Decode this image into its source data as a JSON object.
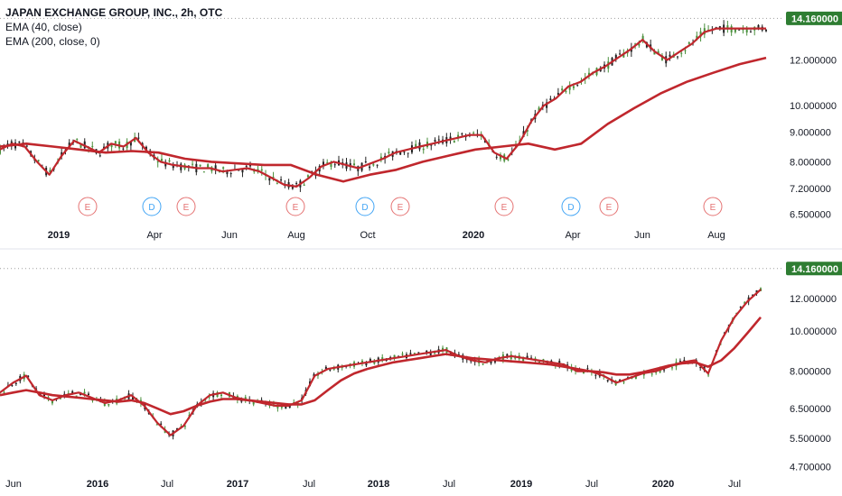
{
  "legend": {
    "title": "JAPAN EXCHANGE GROUP, INC., 2h, OTC",
    "ema_fast": "EMA (40, close)",
    "ema_slow": "EMA (200, close, 0)"
  },
  "colors": {
    "candle_up": "#4a8f3c",
    "candle_down": "#222222",
    "ema": "#c0272d",
    "badge": "#2e7d32",
    "earnings": "#e57373",
    "dividend": "#42a5f5",
    "grid_dot": "#9e9e9e"
  },
  "chart_data": [
    {
      "type": "line",
      "title": "JAPAN EXCHANGE GROUP, INC., 2h, OTC",
      "series": [
        {
          "name": "EMA (40, close)",
          "x": [
            0,
            4,
            8,
            12,
            16,
            20,
            24,
            28,
            32,
            36,
            40,
            44,
            48,
            52,
            56,
            60,
            64,
            68,
            72,
            76,
            80,
            84,
            88,
            92,
            96,
            100,
            104,
            108,
            112,
            116,
            120,
            124,
            128,
            132,
            136,
            140,
            144,
            148,
            152,
            156,
            160,
            164,
            168,
            172,
            176,
            180,
            184,
            188,
            192,
            196,
            200,
            204,
            208,
            212,
            216,
            220,
            224,
            228,
            232,
            236,
            240,
            244,
            248
          ],
          "values": [
            8.4,
            8.6,
            8.5,
            8.0,
            7.6,
            8.2,
            8.7,
            8.5,
            8.3,
            8.6,
            8.5,
            8.8,
            8.3,
            8.0,
            7.9,
            7.85,
            7.8,
            7.8,
            7.7,
            7.75,
            7.8,
            7.7,
            7.5,
            7.3,
            7.25,
            7.5,
            7.85,
            8.0,
            7.9,
            7.8,
            7.95,
            8.1,
            8.3,
            8.4,
            8.5,
            8.6,
            8.7,
            8.8,
            8.9,
            8.9,
            8.3,
            8.1,
            8.6,
            9.4,
            10.0,
            10.3,
            10.8,
            11.0,
            11.4,
            11.7,
            12.1,
            12.5,
            13.0,
            12.4,
            12.0,
            12.4,
            12.8,
            13.4,
            13.6,
            13.6,
            13.6,
            13.6,
            13.6
          ]
        },
        {
          "name": "EMA (200, close, 0)",
          "x": [
            0,
            8,
            16,
            24,
            32,
            40,
            48,
            56,
            64,
            72,
            80,
            88,
            96,
            104,
            112,
            120,
            128,
            136,
            144,
            152,
            160,
            168,
            176,
            184,
            192,
            200,
            208,
            216,
            224,
            232
          ],
          "values": [
            8.5,
            8.6,
            8.5,
            8.4,
            8.3,
            8.35,
            8.3,
            8.1,
            8.0,
            7.95,
            7.9,
            7.9,
            7.6,
            7.4,
            7.6,
            7.75,
            8.0,
            8.2,
            8.4,
            8.5,
            8.6,
            8.4,
            8.6,
            9.3,
            9.9,
            10.5,
            11.0,
            11.4,
            11.8,
            12.1
          ]
        }
      ],
      "x_tick_labels": [
        "2019",
        "Apr",
        "Jun",
        "Aug",
        "Oct",
        "2020",
        "Apr",
        "Jun",
        "Aug"
      ],
      "y_tick_labels": [
        "12.000000",
        "10.000000",
        "9.000000",
        "8.000000",
        "7.200000",
        "6.500000"
      ],
      "ylim": [
        6.3,
        14.8
      ],
      "yscale": "log",
      "last_price": "14.160000",
      "events": [
        {
          "label": "E"
        },
        {
          "label": "D"
        },
        {
          "label": "E"
        },
        {
          "label": "E"
        },
        {
          "label": "D"
        },
        {
          "label": "E"
        },
        {
          "label": "E"
        },
        {
          "label": "D"
        },
        {
          "label": "E"
        },
        {
          "label": "E"
        }
      ]
    },
    {
      "type": "line",
      "series": [
        {
          "name": "EMA (40, close)",
          "values": [
            7.1,
            7.5,
            7.8,
            7.0,
            6.8,
            7.0,
            7.1,
            6.9,
            6.7,
            6.8,
            7.0,
            6.6,
            6.0,
            5.6,
            5.9,
            6.6,
            7.0,
            7.1,
            6.9,
            6.8,
            6.7,
            6.6,
            6.6,
            6.8,
            7.8,
            8.1,
            8.2,
            8.3,
            8.4,
            8.5,
            8.6,
            8.7,
            8.8,
            8.9,
            9.0,
            8.7,
            8.5,
            8.4,
            8.6,
            8.7,
            8.6,
            8.5,
            8.4,
            8.3,
            8.0,
            8.0,
            7.8,
            7.5,
            7.7,
            7.9,
            8.0,
            8.2,
            8.4,
            8.5,
            7.9,
            9.5,
            10.8,
            11.8,
            12.6
          ]
        },
        {
          "name": "EMA (200, close, 0)",
          "values": [
            7.0,
            7.1,
            7.2,
            7.1,
            7.0,
            6.95,
            6.9,
            6.85,
            6.8,
            6.75,
            6.8,
            6.7,
            6.5,
            6.3,
            6.4,
            6.6,
            6.75,
            6.85,
            6.85,
            6.8,
            6.75,
            6.7,
            6.65,
            6.65,
            6.8,
            7.2,
            7.6,
            7.9,
            8.1,
            8.25,
            8.4,
            8.5,
            8.6,
            8.7,
            8.8,
            8.7,
            8.6,
            8.55,
            8.5,
            8.45,
            8.4,
            8.35,
            8.3,
            8.2,
            8.1,
            8.0,
            7.95,
            7.85,
            7.85,
            7.95,
            8.1,
            8.25,
            8.35,
            8.4,
            8.2,
            8.5,
            9.1,
            9.9,
            10.8
          ]
        }
      ],
      "x_tick_labels": [
        "Jun",
        "2016",
        "Jul",
        "2017",
        "Jul",
        "2018",
        "Jul",
        "2019",
        "Jul",
        "2020",
        "Jul"
      ],
      "y_tick_labels": [
        "12.000000",
        "10.000000",
        "8.000000",
        "6.500000",
        "5.500000",
        "4.700000"
      ],
      "ylim": [
        4.55,
        14.8
      ],
      "yscale": "log",
      "last_price": "14.160000"
    }
  ]
}
